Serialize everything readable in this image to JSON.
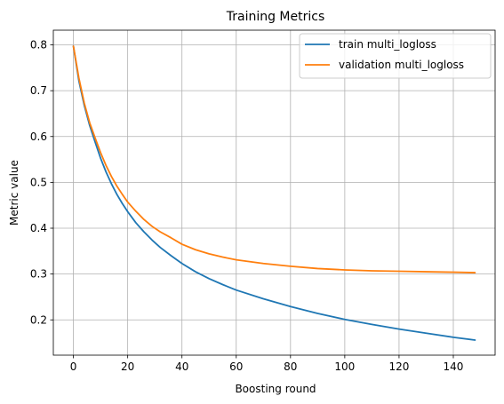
{
  "chart_data": {
    "type": "line",
    "title": "Training Metrics",
    "xlabel": "Boosting round",
    "ylabel": "Metric value",
    "xlim": [
      -7.4,
      155.4
    ],
    "ylim": [
      0.123,
      0.832
    ],
    "xticks": [
      0,
      20,
      40,
      60,
      80,
      100,
      120,
      140
    ],
    "yticks": [
      0.2,
      0.3,
      0.4,
      0.5,
      0.6,
      0.7,
      0.8
    ],
    "ytick_labels": [
      "0.2",
      "0.3",
      "0.4",
      "0.5",
      "0.6",
      "0.7",
      "0.8"
    ],
    "grid": true,
    "legend_position": "top-right",
    "series": [
      {
        "name": "train multi_logloss",
        "color": "#1f77b4",
        "x": [
          0,
          2,
          4,
          6,
          8,
          10,
          12,
          14,
          16,
          18,
          20,
          23,
          26,
          29,
          32,
          36,
          40,
          45,
          50,
          55,
          60,
          70,
          80,
          90,
          100,
          110,
          120,
          130,
          140,
          148
        ],
        "y": [
          0.797,
          0.722,
          0.668,
          0.624,
          0.588,
          0.553,
          0.523,
          0.497,
          0.474,
          0.454,
          0.436,
          0.412,
          0.392,
          0.374,
          0.358,
          0.34,
          0.323,
          0.305,
          0.29,
          0.277,
          0.265,
          0.246,
          0.229,
          0.214,
          0.201,
          0.19,
          0.18,
          0.171,
          0.162,
          0.156
        ]
      },
      {
        "name": "validation multi_logloss",
        "color": "#ff7f0e",
        "x": [
          0,
          2,
          4,
          6,
          8,
          10,
          12,
          14,
          16,
          18,
          20,
          23,
          26,
          29,
          32,
          36,
          40,
          45,
          50,
          55,
          60,
          70,
          80,
          90,
          100,
          110,
          120,
          130,
          140,
          148
        ],
        "y": [
          0.797,
          0.728,
          0.673,
          0.63,
          0.597,
          0.565,
          0.537,
          0.513,
          0.492,
          0.474,
          0.457,
          0.437,
          0.419,
          0.404,
          0.392,
          0.379,
          0.365,
          0.353,
          0.344,
          0.337,
          0.331,
          0.323,
          0.317,
          0.312,
          0.309,
          0.307,
          0.306,
          0.305,
          0.304,
          0.303
        ]
      }
    ]
  }
}
